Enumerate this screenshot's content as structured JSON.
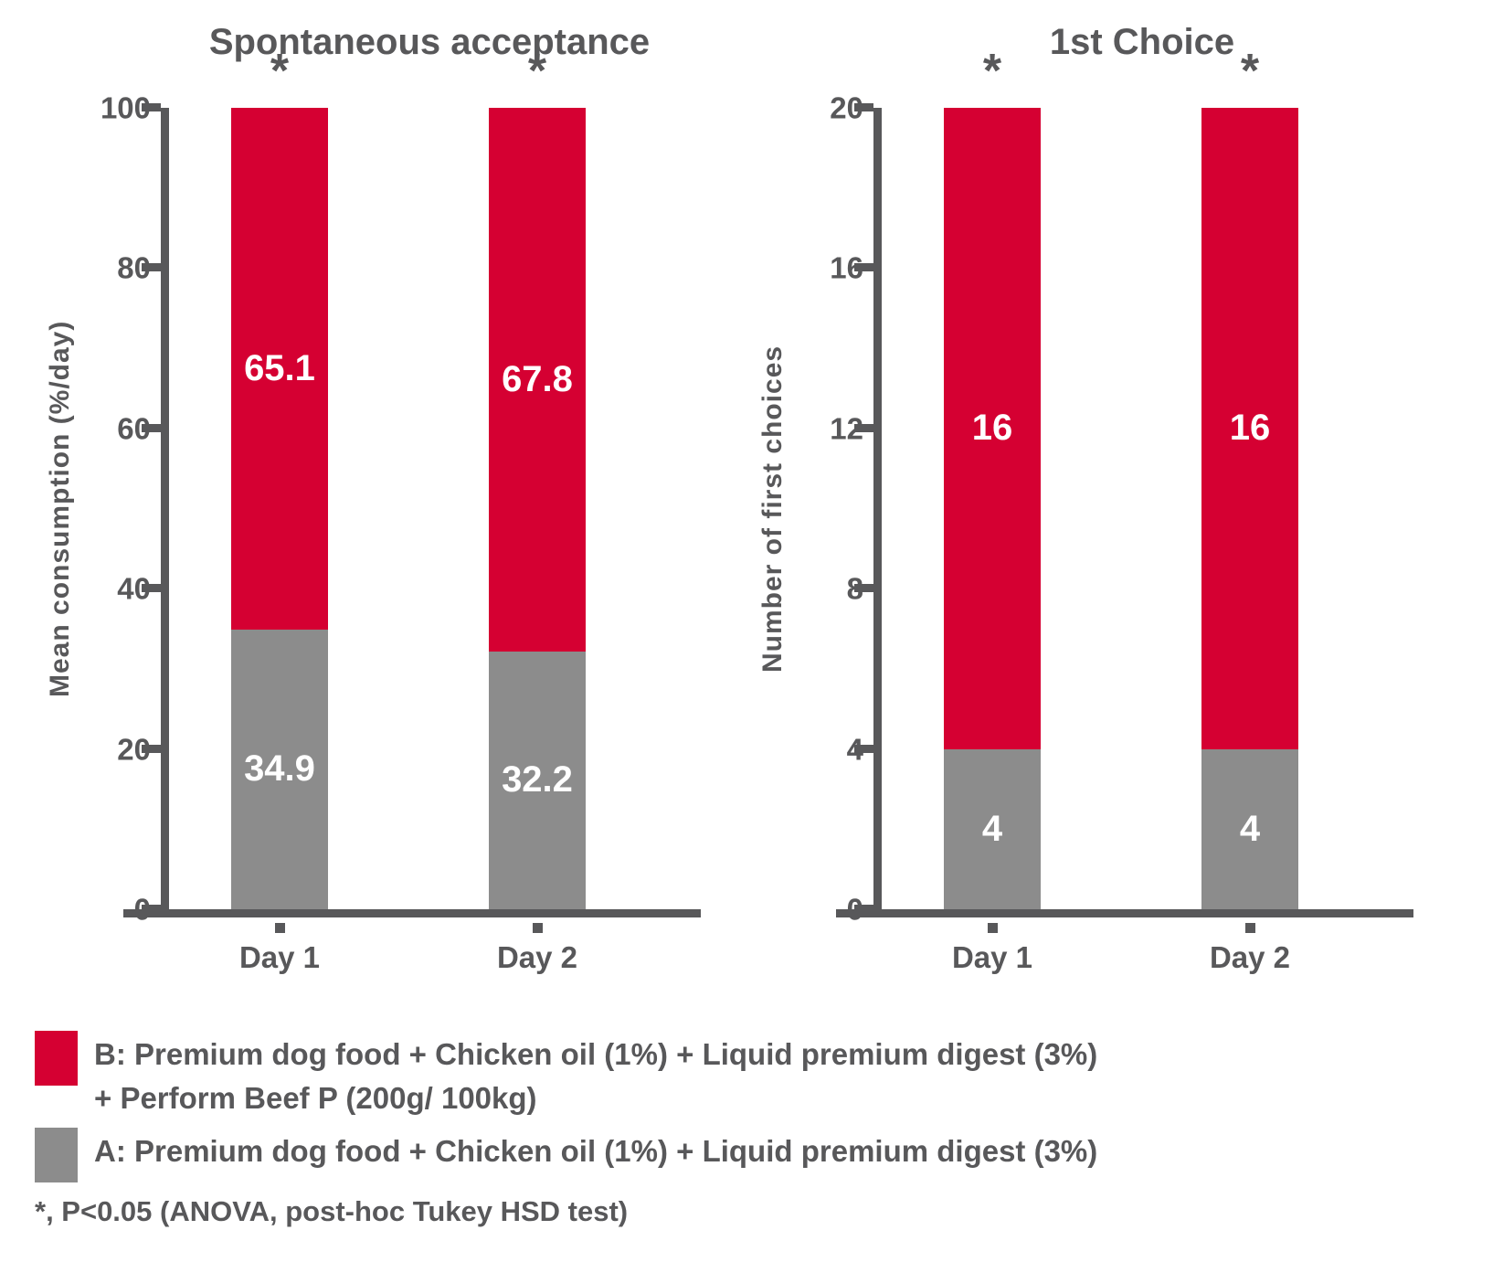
{
  "colors": {
    "red": "#D50032",
    "gray": "#8C8C8C",
    "axis": "#58585A",
    "value_label": "#FFFFFF"
  },
  "chart_data": [
    {
      "type": "bar",
      "stacked": true,
      "title": "Spontaneous acceptance",
      "ylabel": "Mean consumption (%/day)",
      "xlabel": "",
      "ylim": [
        0,
        100
      ],
      "yticks": [
        0,
        20,
        40,
        60,
        80,
        100
      ],
      "categories": [
        "Day 1",
        "Day 2"
      ],
      "series": [
        {
          "name": "A: Premium dog food + Chicken oil (1%) + Liquid premium digest (3%)",
          "color": "gray",
          "values": [
            34.9,
            32.2
          ]
        },
        {
          "name": "B: Premium dog food + Chicken oil (1%) + Liquid premium digest (3%) + Perform Beef P (200g/ 100kg)",
          "color": "red",
          "values": [
            65.1,
            67.8
          ]
        }
      ],
      "annotations": [
        "*",
        "*"
      ],
      "grid": false,
      "legend_position": "bottom"
    },
    {
      "type": "bar",
      "stacked": true,
      "title": "1st Choice",
      "ylabel": "Number of first choices",
      "xlabel": "",
      "ylim": [
        0,
        20
      ],
      "yticks": [
        0,
        4,
        8,
        12,
        16,
        20
      ],
      "categories": [
        "Day 1",
        "Day 2"
      ],
      "series": [
        {
          "name": "A: Premium dog food + Chicken oil (1%) + Liquid premium digest (3%)",
          "color": "gray",
          "values": [
            4,
            4
          ]
        },
        {
          "name": "B: Premium dog food + Chicken oil (1%) + Liquid premium digest (3%) + Perform Beef P (200g/ 100kg)",
          "color": "red",
          "values": [
            16,
            16
          ]
        }
      ],
      "annotations": [
        "*",
        "*"
      ],
      "grid": false,
      "legend_position": "bottom"
    }
  ],
  "legend": {
    "items": [
      {
        "color": "red",
        "lines": [
          "B: Premium dog food + Chicken oil (1%) + Liquid premium digest (3%)",
          "+ Perform Beef P (200g/ 100kg)"
        ]
      },
      {
        "color": "gray",
        "lines": [
          "A: Premium dog food + Chicken oil (1%) + Liquid premium digest (3%)"
        ]
      }
    ],
    "footnote": "*, P<0.05 (ANOVA, post-hoc Tukey HSD test)"
  }
}
